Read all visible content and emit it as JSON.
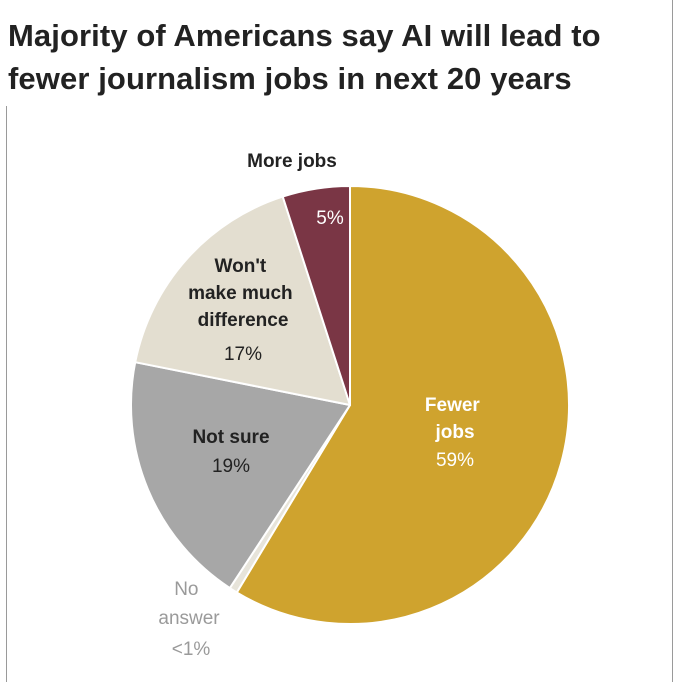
{
  "chart_data": {
    "type": "pie",
    "title_lines": [
      "Majority of Americans say AI will lead to",
      "fewer journalism jobs in next 20 years"
    ],
    "start_angle_deg": 0,
    "direction": "clockwise",
    "slices": [
      {
        "name_lines": [
          "Fewer",
          "jobs"
        ],
        "label": "59%",
        "value": 59,
        "color": "#CFA32E",
        "text_color": "#ffffff",
        "label_position": "inside"
      },
      {
        "name_lines": [
          "No",
          "answer"
        ],
        "label": "<1%",
        "value": 0.6,
        "color": "#E7E4DA",
        "text_color": "#9a9a9a",
        "label_position": "outside"
      },
      {
        "name_lines": [
          "Not sure"
        ],
        "label": "19%",
        "value": 19,
        "color": "#A7A7A7",
        "text_color": "#222222",
        "label_position": "inside"
      },
      {
        "name_lines": [
          "Won't",
          "make much",
          "difference"
        ],
        "label": "17%",
        "value": 17,
        "color": "#E3DED0",
        "text_color": "#222222",
        "label_position": "inside"
      },
      {
        "name_lines": [
          "More jobs"
        ],
        "label": "5%",
        "value": 5,
        "color": "#7A3645",
        "text_color": "#ffffff",
        "label_position": "outside-name"
      }
    ]
  }
}
